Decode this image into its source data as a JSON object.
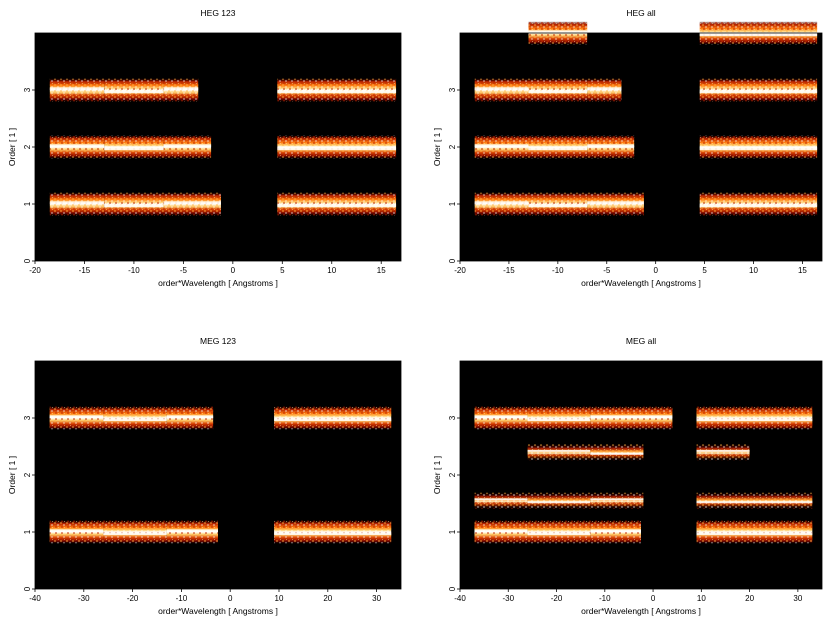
{
  "chart_data": [
    {
      "type": "heatmap",
      "title": "HEG 123",
      "xlabel": "order*Wavelength [ Angstroms ]",
      "ylabel": "Order [ 1 ]",
      "xlim": [
        -20,
        17
      ],
      "ylim": [
        0,
        4
      ],
      "xticks": [
        -20,
        -15,
        -10,
        -5,
        0,
        5,
        10,
        15
      ],
      "yticks": [
        0,
        1,
        2,
        3
      ],
      "colormap": [
        "#000000",
        "#5a0000",
        "#b01e00",
        "#ff6a00",
        "#ffc040",
        "#fff8d0",
        "#ffffff"
      ],
      "background": "#000000",
      "bands": [
        {
          "order": 3,
          "segments": [
            [
              -18.5,
              -13.0
            ],
            [
              -13.0,
              -7.0
            ],
            [
              -7.0,
              -3.5
            ],
            [
              4.5,
              16.5
            ]
          ]
        },
        {
          "order": 2,
          "segments": [
            [
              -18.5,
              -13.0
            ],
            [
              -13.0,
              -7.0
            ],
            [
              -7.0,
              -2.2
            ],
            [
              4.5,
              16.5
            ]
          ]
        },
        {
          "order": 1,
          "segments": [
            [
              -18.5,
              -13.0
            ],
            [
              -13.0,
              -7.0
            ],
            [
              -7.0,
              -1.2
            ],
            [
              4.5,
              16.5
            ]
          ]
        }
      ]
    },
    {
      "type": "heatmap",
      "title": "HEG all",
      "xlabel": "order*Wavelength [ Angstroms ]",
      "ylabel": "Order [ 1 ]",
      "xlim": [
        -20,
        17
      ],
      "ylim": [
        0,
        4
      ],
      "xticks": [
        -20,
        -15,
        -10,
        -5,
        0,
        5,
        10,
        15
      ],
      "yticks": [
        0,
        1,
        2,
        3
      ],
      "colormap": [
        "#000000",
        "#5a0000",
        "#b01e00",
        "#ff6a00",
        "#ffc040",
        "#fff8d0",
        "#ffffff"
      ],
      "background": "#000000",
      "bands": [
        {
          "order": 4,
          "segments": [
            [
              -13.0,
              -7.0
            ],
            [
              4.5,
              16.5
            ]
          ]
        },
        {
          "order": 3,
          "segments": [
            [
              -18.5,
              -13.0
            ],
            [
              -13.0,
              -7.0
            ],
            [
              -7.0,
              -3.5
            ],
            [
              4.5,
              16.5
            ]
          ]
        },
        {
          "order": 2,
          "segments": [
            [
              -18.5,
              -13.0
            ],
            [
              -13.0,
              -7.0
            ],
            [
              -7.0,
              -2.2
            ],
            [
              4.5,
              16.5
            ]
          ]
        },
        {
          "order": 1,
          "segments": [
            [
              -18.5,
              -13.0
            ],
            [
              -13.0,
              -7.0
            ],
            [
              -7.0,
              -1.2
            ],
            [
              4.5,
              16.5
            ]
          ]
        }
      ]
    },
    {
      "type": "heatmap",
      "title": "MEG 123",
      "xlabel": "order*Wavelength [ Angstroms ]",
      "ylabel": "Order [ 1 ]",
      "xlim": [
        -40,
        35
      ],
      "ylim": [
        0,
        4
      ],
      "xticks": [
        -40,
        -30,
        -20,
        -10,
        0,
        10,
        20,
        30
      ],
      "yticks": [
        0,
        1,
        2,
        3
      ],
      "colormap": [
        "#000000",
        "#5a0000",
        "#b01e00",
        "#ff6a00",
        "#ffc040",
        "#fff8d0",
        "#ffffff"
      ],
      "background": "#000000",
      "bands": [
        {
          "order": 3,
          "segments": [
            [
              -37.0,
              -26.0
            ],
            [
              -26.0,
              -13.0
            ],
            [
              -13.0,
              -3.5
            ],
            [
              9.0,
              33.0
            ]
          ]
        },
        {
          "order": 1,
          "segments": [
            [
              -37.0,
              -26.0
            ],
            [
              -26.0,
              -13.0
            ],
            [
              -13.0,
              -2.5
            ],
            [
              9.0,
              33.0
            ]
          ]
        }
      ]
    },
    {
      "type": "heatmap",
      "title": "MEG all",
      "xlabel": "order*Wavelength [ Angstroms ]",
      "ylabel": "Order [ 1 ]",
      "xlim": [
        -40,
        35
      ],
      "ylim": [
        0,
        4
      ],
      "xticks": [
        -40,
        -30,
        -20,
        -10,
        0,
        10,
        20,
        30
      ],
      "yticks": [
        0,
        1,
        2,
        3
      ],
      "colormap": [
        "#000000",
        "#5a0000",
        "#b01e00",
        "#ff6a00",
        "#ffc040",
        "#fff8d0",
        "#ffffff"
      ],
      "background": "#000000",
      "bands": [
        {
          "order": 3,
          "segments": [
            [
              -37.0,
              -26.0
            ],
            [
              -26.0,
              -13.0
            ],
            [
              -13.0,
              4.0
            ],
            [
              9.0,
              33.0
            ]
          ]
        },
        {
          "order": 2.4,
          "segments": [
            [
              -26.0,
              -13.0
            ],
            [
              -13.0,
              -2.0
            ],
            [
              9.0,
              20.0
            ]
          ]
        },
        {
          "order": 1.55,
          "segments": [
            [
              -37.0,
              -26.0
            ],
            [
              -26.0,
              -13.0
            ],
            [
              -13.0,
              -2.0
            ],
            [
              9.0,
              33.0
            ]
          ]
        },
        {
          "order": 1,
          "segments": [
            [
              -37.0,
              -26.0
            ],
            [
              -26.0,
              -13.0
            ],
            [
              -13.0,
              -2.5
            ],
            [
              9.0,
              33.0
            ]
          ]
        }
      ]
    }
  ]
}
